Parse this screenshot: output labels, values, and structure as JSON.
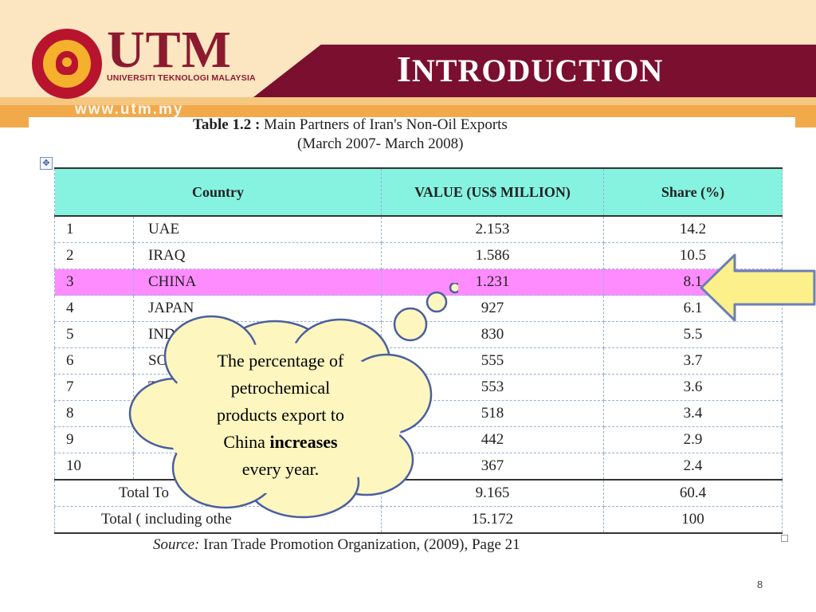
{
  "header": {
    "brand": "UTM",
    "brand_sub": "UNIVERSITI TEKNOLOGI MALAYSIA",
    "website": "www.utm.my",
    "slide_title_first": "I",
    "slide_title_rest": "NTRODUCTION",
    "colors": {
      "maroon": "#7b0f2f",
      "cream": "#fbe6c1",
      "orange": "#f2a94a"
    }
  },
  "table": {
    "title_label": "Table 1.2 :",
    "title_text": "Main Partners of Iran's Non-Oil Exports",
    "subtitle": "(March 2007- March 2008)",
    "columns": {
      "country": "Country",
      "value": "VALUE (US$ MILLION)",
      "share": "Share (%)"
    },
    "rows": [
      {
        "no": "1",
        "name": "UAE",
        "value": "2.153",
        "share": "14.2"
      },
      {
        "no": "2",
        "name": "IRAQ",
        "value": "1.586",
        "share": "10.5"
      },
      {
        "no": "3",
        "name": "CHINA",
        "value": "1.231",
        "share": "8.1"
      },
      {
        "no": "4",
        "name": "JAPAN",
        "value": "927",
        "share": "6.1"
      },
      {
        "no": "5",
        "name": "INDIA",
        "value": "830",
        "share": "5.5"
      },
      {
        "no": "6",
        "name": "SO",
        "value": "555",
        "share": "3.7"
      },
      {
        "no": "7",
        "name": "T",
        "value": "553",
        "share": "3.6"
      },
      {
        "no": "8",
        "name": "",
        "value": "518",
        "share": "3.4"
      },
      {
        "no": "9",
        "name": "",
        "value": "442",
        "share": "2.9"
      },
      {
        "no": "10",
        "name": "",
        "value": "367",
        "share": "2.4"
      }
    ],
    "total_top_label": "Total To",
    "total_top_value": "9.165",
    "total_top_share": "60.4",
    "total_label": "Total ( including othe",
    "total_value": "15.172",
    "total_share": "100",
    "source_label": "Source:",
    "source_text": "Iran Trade Promotion Organization, (2009), Page 21",
    "highlight_color": "#ff8cff",
    "header_color": "#86f3e0"
  },
  "callout": {
    "line1": "The percentage of",
    "line2": "petrochemical",
    "line3": "products export to",
    "line4_prefix": "China ",
    "line4_bold": "increases",
    "line5": "every year."
  },
  "page_number": "8"
}
